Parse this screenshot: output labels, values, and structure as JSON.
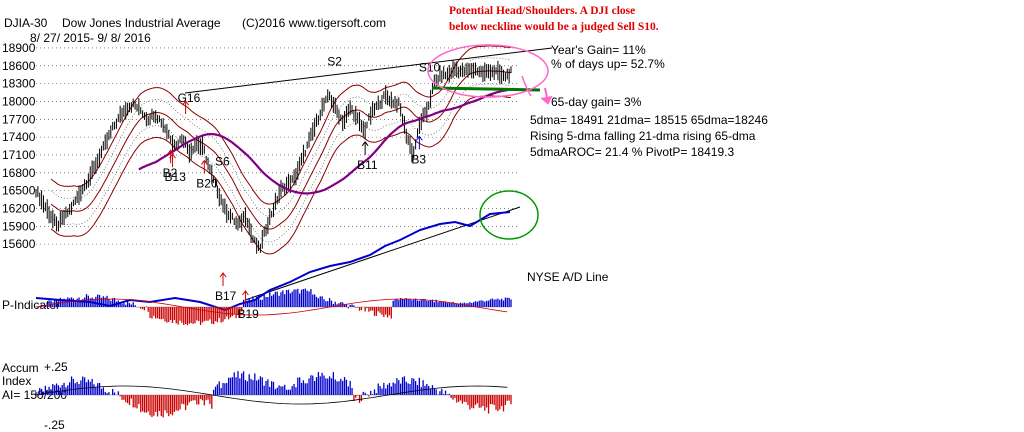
{
  "header": {
    "ticker": "DJIA-30",
    "name": "Dow Jones Industrial Average",
    "copyright": "(C)2016 www.tigersoft.com",
    "date_range": "8/ 27/ 2015-  9/ 8/ 2016",
    "warning_line1": "Potential Head/Shoulders.  A DJI close",
    "warning_line2": "below neckline would be a judged Sell S10."
  },
  "stats": {
    "years_gain": "Year's Gain= 11%",
    "days_up": "% of days up= 52.7%",
    "gain65": "65-day gain= 3%",
    "dma": "5dma= 18491  21dma= 18515  65dma=18246",
    "trend": "Rising 5-dma  falling 21-dma  rising 65-dma",
    "aroc": "5dmaAROC= 21.4  %   PivotP= 18419.3"
  },
  "panel_labels": {
    "nyse_ad": "NYSE A/D Line",
    "p_indicator": "P-Indicator",
    "accum1": "Accum",
    "accum2": "Index",
    "accum3": "AI= 150/200",
    "accum_top": "+.25",
    "accum_bottom": "-.25"
  },
  "signals": [
    {
      "label": "S10",
      "arrow": "none",
      "color": "#000000",
      "i": 209
    },
    {
      "label": "S2",
      "arrow": "none",
      "color": "#000000",
      "i": 160
    },
    {
      "label": "G16",
      "arrow": "red-up",
      "color": "#000000",
      "i": 80
    },
    {
      "label": "S6",
      "arrow": "none",
      "color": "#000000",
      "i": 100
    },
    {
      "label": "B2",
      "arrow": "red-up",
      "color": "#000000",
      "i": 72
    },
    {
      "label": "B13",
      "arrow": "red-up",
      "color": "#000000",
      "i": 73
    },
    {
      "label": "B20",
      "arrow": "red-up",
      "color": "#000000",
      "i": 90
    },
    {
      "label": "B11",
      "arrow": "black-up",
      "color": "#000000",
      "i": 176
    },
    {
      "label": "B3",
      "arrow": "blue-up",
      "color": "#000000",
      "i": 205
    },
    {
      "label": "B17",
      "arrow": "red-up",
      "color": "#000000",
      "i": 100
    },
    {
      "label": "B19",
      "arrow": "red-up",
      "color": "#000000",
      "i": 112
    }
  ],
  "colors": {
    "price_bars": "#000000",
    "ma65": "#800080",
    "bands": "#8b0000",
    "ad_line": "#0000cc",
    "p_pos": "#0000cc",
    "p_neg": "#cc0000",
    "highlight_ellipse": "#ff66cc",
    "green_circle": "#009900"
  },
  "chart_data": {
    "type": "line",
    "title": "DJIA-30  Dow Jones Industrial Average",
    "xlabel": "",
    "ylabel": "",
    "ylim": [
      15400,
      18950
    ],
    "y_ticks": [
      18900,
      18600,
      18300,
      18000,
      17700,
      17400,
      17100,
      16800,
      16500,
      16200,
      15900,
      15600
    ],
    "y_tick_labels": [
      "18900",
      "18600",
      "18300",
      "18000",
      "17700",
      "17400",
      "17100",
      "16800",
      "16500",
      "16200",
      "15900",
      "15600"
    ],
    "grid": true,
    "series": [
      {
        "values": [
          16500,
          16300,
          16100,
          15900,
          16050,
          16200,
          16400,
          16600,
          16800,
          17050,
          17300,
          17550,
          17750,
          17900,
          17950,
          17850,
          17700,
          17800,
          17650,
          17450,
          17250,
          17400,
          17150,
          17300,
          17200,
          16800,
          16500,
          16200,
          16050,
          15900,
          16100,
          15700,
          15500,
          15900,
          16200,
          16500,
          16600,
          16700,
          17000,
          17300,
          17600,
          17900,
          18100,
          17850,
          17650,
          17900,
          17700,
          17500,
          17800,
          17950,
          18100,
          18000,
          17950,
          17450,
          17100,
          17650,
          17850,
          18300,
          18450,
          18450,
          18550,
          18500,
          18520,
          18540,
          18470,
          18520,
          18490,
          18410,
          18491
        ]
      }
    ]
  }
}
